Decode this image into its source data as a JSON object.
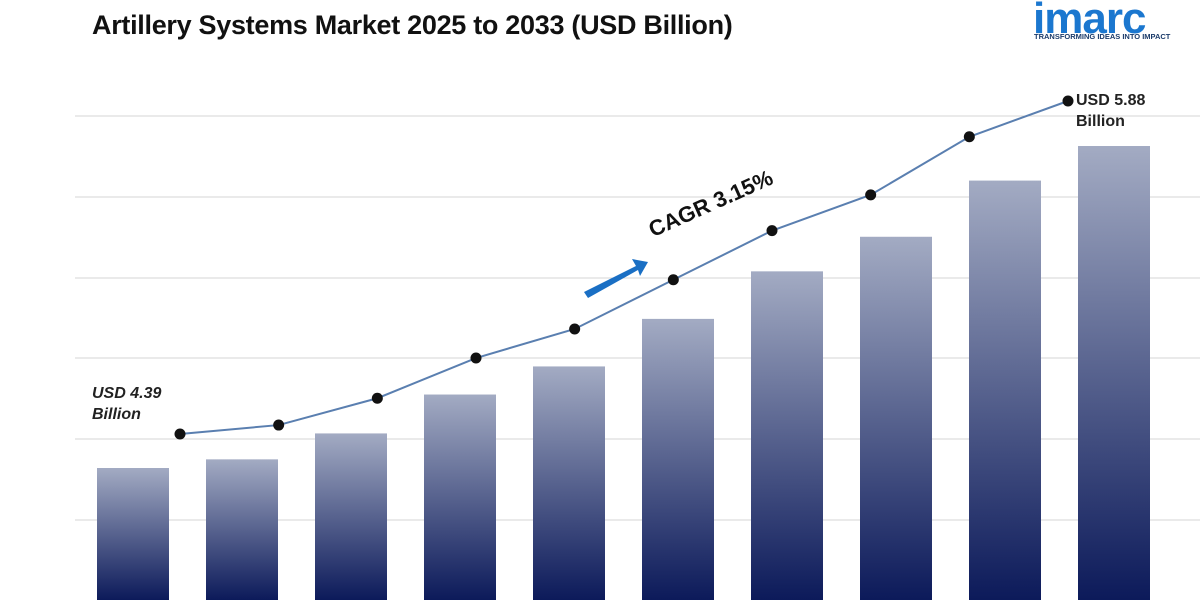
{
  "chart_data": {
    "type": "bar",
    "title": "Artillery Systems Market 2025 to 2033 (USD Billion)",
    "values": [
      4.39,
      4.43,
      4.55,
      4.73,
      4.86,
      5.08,
      5.3,
      5.46,
      5.72,
      5.88
    ],
    "value_labels": [
      "USD 4.39 Billion",
      null,
      null,
      null,
      null,
      null,
      null,
      null,
      null,
      "USD 5.88 Billion"
    ],
    "annotation": "CAGR 3.15%",
    "color": "#0c1a5a",
    "line_color": "#5a7fb0",
    "marker_color": "#111111",
    "grid": true
  },
  "brand": {
    "name": "imarc",
    "tagline": "TRANSFORMING IDEAS INTO IMPACT"
  }
}
